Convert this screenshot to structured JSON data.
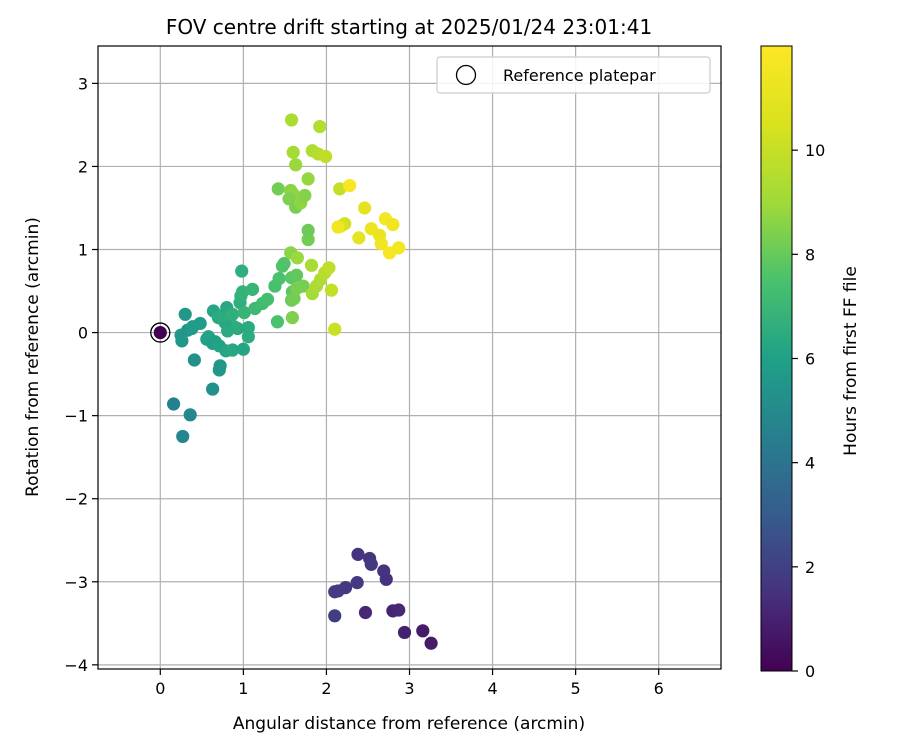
{
  "chart_data": {
    "type": "scatter",
    "title": "FOV centre drift starting at 2025/01/24 23:01:41",
    "xlabel": "Angular distance from reference (arcmin)",
    "ylabel": "Rotation from reference (arcmin)",
    "xlim": [
      -0.75,
      6.75
    ],
    "ylim": [
      -4.05,
      3.45
    ],
    "x_ticks": [
      0,
      1,
      2,
      3,
      4,
      5,
      6
    ],
    "y_ticks": [
      -4,
      -3,
      -2,
      -1,
      0,
      1,
      2,
      3
    ],
    "grid": true,
    "legend": {
      "placement": "upper-right",
      "entries": [
        "Reference platepar"
      ]
    },
    "colorbar": {
      "label": "Hours from first FF file",
      "range": [
        0,
        12
      ],
      "ticks": [
        0,
        2,
        4,
        6,
        8,
        10
      ],
      "colormap": "viridis"
    },
    "reference": {
      "x": 0,
      "y": 0,
      "hours": 0
    },
    "points": [
      {
        "x": 2.38,
        "y": -2.67,
        "h": 1.6
      },
      {
        "x": 2.52,
        "y": -2.72,
        "h": 1.6
      },
      {
        "x": 2.54,
        "y": -2.79,
        "h": 1.7
      },
      {
        "x": 2.69,
        "y": -2.87,
        "h": 1.5
      },
      {
        "x": 2.72,
        "y": -2.97,
        "h": 1.5
      },
      {
        "x": 2.37,
        "y": -3.01,
        "h": 1.8
      },
      {
        "x": 2.23,
        "y": -3.07,
        "h": 1.7
      },
      {
        "x": 2.14,
        "y": -3.11,
        "h": 1.8
      },
      {
        "x": 2.1,
        "y": -3.12,
        "h": 1.9
      },
      {
        "x": 2.47,
        "y": -3.37,
        "h": 1.2
      },
      {
        "x": 2.8,
        "y": -3.35,
        "h": 1.1
      },
      {
        "x": 2.87,
        "y": -3.34,
        "h": 1.2
      },
      {
        "x": 2.1,
        "y": -3.41,
        "h": 1.9
      },
      {
        "x": 3.16,
        "y": -3.59,
        "h": 0.8
      },
      {
        "x": 2.94,
        "y": -3.61,
        "h": 1.0
      },
      {
        "x": 3.26,
        "y": -3.74,
        "h": 0.8
      },
      {
        "x": 0.16,
        "y": -0.86,
        "h": 4.6
      },
      {
        "x": 0.36,
        "y": -0.99,
        "h": 4.9
      },
      {
        "x": 0.27,
        "y": -1.25,
        "h": 4.8
      },
      {
        "x": 0.63,
        "y": -0.68,
        "h": 5.2
      },
      {
        "x": 0.72,
        "y": -0.4,
        "h": 5.5
      },
      {
        "x": 0.71,
        "y": -0.45,
        "h": 5.5
      },
      {
        "x": 0.41,
        "y": -0.33,
        "h": 5.3
      },
      {
        "x": 0.26,
        "y": -0.1,
        "h": 5.5
      },
      {
        "x": 0.25,
        "y": -0.03,
        "h": 5.6
      },
      {
        "x": 0.33,
        "y": 0.03,
        "h": 5.5
      },
      {
        "x": 0.38,
        "y": 0.05,
        "h": 5.7
      },
      {
        "x": 0.3,
        "y": 0.22,
        "h": 5.6
      },
      {
        "x": 0.48,
        "y": 0.11,
        "h": 5.8
      },
      {
        "x": 0.39,
        "y": 0.07,
        "h": 5.8
      },
      {
        "x": 0.56,
        "y": -0.08,
        "h": 6.0
      },
      {
        "x": 0.58,
        "y": -0.05,
        "h": 6.1
      },
      {
        "x": 0.63,
        "y": -0.13,
        "h": 5.9
      },
      {
        "x": 0.66,
        "y": -0.11,
        "h": 6.0
      },
      {
        "x": 0.71,
        "y": -0.16,
        "h": 6.1
      },
      {
        "x": 0.79,
        "y": -0.22,
        "h": 6.2
      },
      {
        "x": 0.87,
        "y": -0.21,
        "h": 6.3
      },
      {
        "x": 1.0,
        "y": -0.2,
        "h": 6.2
      },
      {
        "x": 1.06,
        "y": -0.05,
        "h": 6.5
      },
      {
        "x": 1.06,
        "y": 0.06,
        "h": 6.4
      },
      {
        "x": 0.93,
        "y": 0.05,
        "h": 6.3
      },
      {
        "x": 0.89,
        "y": 0.07,
        "h": 6.5
      },
      {
        "x": 0.81,
        "y": 0.02,
        "h": 6.4
      },
      {
        "x": 0.78,
        "y": 0.12,
        "h": 6.3
      },
      {
        "x": 0.64,
        "y": 0.26,
        "h": 6.2
      },
      {
        "x": 0.7,
        "y": 0.18,
        "h": 6.4
      },
      {
        "x": 0.76,
        "y": 0.21,
        "h": 6.5
      },
      {
        "x": 0.8,
        "y": 0.3,
        "h": 6.3
      },
      {
        "x": 0.87,
        "y": 0.22,
        "h": 6.6
      },
      {
        "x": 0.96,
        "y": 0.36,
        "h": 6.6
      },
      {
        "x": 0.97,
        "y": 0.44,
        "h": 6.7
      },
      {
        "x": 0.99,
        "y": 0.49,
        "h": 6.8
      },
      {
        "x": 1.01,
        "y": 0.24,
        "h": 6.9
      },
      {
        "x": 1.11,
        "y": 0.52,
        "h": 6.9
      },
      {
        "x": 0.98,
        "y": 0.74,
        "h": 6.6
      },
      {
        "x": 1.14,
        "y": 0.29,
        "h": 7.1
      },
      {
        "x": 1.23,
        "y": 0.35,
        "h": 7.2
      },
      {
        "x": 1.29,
        "y": 0.4,
        "h": 7.3
      },
      {
        "x": 1.38,
        "y": 0.56,
        "h": 7.4
      },
      {
        "x": 1.43,
        "y": 0.65,
        "h": 7.5
      },
      {
        "x": 1.47,
        "y": 0.8,
        "h": 7.6
      },
      {
        "x": 1.49,
        "y": 0.83,
        "h": 7.6
      },
      {
        "x": 1.41,
        "y": 0.13,
        "h": 7.5
      },
      {
        "x": 1.58,
        "y": 0.66,
        "h": 7.8
      },
      {
        "x": 1.64,
        "y": 0.69,
        "h": 7.9
      },
      {
        "x": 1.59,
        "y": 0.49,
        "h": 7.8
      },
      {
        "x": 1.58,
        "y": 0.39,
        "h": 8.1
      },
      {
        "x": 1.61,
        "y": 0.41,
        "h": 8.2
      },
      {
        "x": 1.64,
        "y": 0.53,
        "h": 8.3
      },
      {
        "x": 1.72,
        "y": 0.56,
        "h": 8.3
      },
      {
        "x": 1.59,
        "y": 0.18,
        "h": 8.4
      },
      {
        "x": 1.57,
        "y": 0.96,
        "h": 8.6
      },
      {
        "x": 1.65,
        "y": 0.9,
        "h": 8.9
      },
      {
        "x": 1.82,
        "y": 0.81,
        "h": 9.2
      },
      {
        "x": 1.83,
        "y": 0.47,
        "h": 9.1
      },
      {
        "x": 1.88,
        "y": 0.56,
        "h": 9.3
      },
      {
        "x": 1.93,
        "y": 0.64,
        "h": 9.4
      },
      {
        "x": 1.98,
        "y": 0.72,
        "h": 9.6
      },
      {
        "x": 2.03,
        "y": 0.78,
        "h": 9.8
      },
      {
        "x": 2.06,
        "y": 0.51,
        "h": 9.9
      },
      {
        "x": 2.1,
        "y": 0.04,
        "h": 10.1
      },
      {
        "x": 1.78,
        "y": 1.12,
        "h": 8.2
      },
      {
        "x": 1.78,
        "y": 1.23,
        "h": 8.1
      },
      {
        "x": 1.42,
        "y": 1.73,
        "h": 8.2
      },
      {
        "x": 1.57,
        "y": 1.71,
        "h": 8.6
      },
      {
        "x": 1.6,
        "y": 1.67,
        "h": 8.7
      },
      {
        "x": 1.55,
        "y": 1.61,
        "h": 8.4
      },
      {
        "x": 1.63,
        "y": 1.51,
        "h": 8.3
      },
      {
        "x": 1.69,
        "y": 1.56,
        "h": 8.7
      },
      {
        "x": 1.74,
        "y": 1.65,
        "h": 8.5
      },
      {
        "x": 1.78,
        "y": 1.85,
        "h": 8.8
      },
      {
        "x": 1.63,
        "y": 2.02,
        "h": 8.9
      },
      {
        "x": 1.6,
        "y": 2.17,
        "h": 9.1
      },
      {
        "x": 1.58,
        "y": 2.56,
        "h": 9.3
      },
      {
        "x": 1.83,
        "y": 2.19,
        "h": 9.4
      },
      {
        "x": 1.9,
        "y": 2.15,
        "h": 9.6
      },
      {
        "x": 1.92,
        "y": 2.48,
        "h": 9.5
      },
      {
        "x": 1.99,
        "y": 2.12,
        "h": 9.8
      },
      {
        "x": 2.16,
        "y": 1.73,
        "h": 10.0
      },
      {
        "x": 2.22,
        "y": 1.31,
        "h": 10.3
      },
      {
        "x": 2.17,
        "y": 1.28,
        "h": 10.5
      },
      {
        "x": 2.28,
        "y": 1.77,
        "h": 11.8
      },
      {
        "x": 2.46,
        "y": 1.5,
        "h": 10.9
      },
      {
        "x": 2.39,
        "y": 1.14,
        "h": 11.0
      },
      {
        "x": 2.14,
        "y": 1.27,
        "h": 11.5
      },
      {
        "x": 2.54,
        "y": 1.25,
        "h": 11.3
      },
      {
        "x": 2.64,
        "y": 1.17,
        "h": 11.2
      },
      {
        "x": 2.66,
        "y": 1.07,
        "h": 11.4
      },
      {
        "x": 2.71,
        "y": 1.37,
        "h": 11.6
      },
      {
        "x": 2.8,
        "y": 1.3,
        "h": 11.5
      },
      {
        "x": 2.76,
        "y": 0.96,
        "h": 11.7
      },
      {
        "x": 2.87,
        "y": 1.02,
        "h": 11.6
      }
    ]
  }
}
